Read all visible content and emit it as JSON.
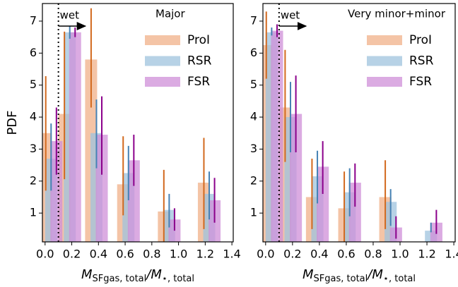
{
  "chart_data": [
    {
      "type": "bar",
      "ylabel": "PDF",
      "title": "Major",
      "xlabel_parts": [
        "M",
        "SFgas, total",
        "/M",
        "⋆, total"
      ],
      "threshold": 0.1,
      "threshold_label": "wet",
      "x": [
        0.045,
        0.185,
        0.385,
        0.625,
        0.93,
        1.23
      ],
      "bar_width": 0.09,
      "xlim": [
        -0.02,
        1.41
      ],
      "ylim": [
        0.1,
        7.55
      ],
      "xticks": [
        {
          "value": 0,
          "label": "0.0"
        },
        {
          "value": 0.2,
          "label": "0.2"
        },
        {
          "value": 0.4,
          "label": "0.4"
        },
        {
          "value": 0.6,
          "label": "0.6"
        },
        {
          "value": 0.8,
          "label": "0.8"
        },
        {
          "value": 1,
          "label": "1.0"
        },
        {
          "value": 1.2,
          "label": "1.2"
        },
        {
          "value": 1.4,
          "label": "1.4"
        }
      ],
      "yticks": [
        1,
        2,
        3,
        4,
        5,
        6,
        7
      ],
      "legend": "upper right",
      "series": [
        {
          "name": "ProI",
          "color": "#f0b088",
          "err_color": "#d2691e",
          "values": [
            3.5,
            4.1,
            5.8,
            1.9,
            1.05,
            1.95
          ],
          "lower": [
            1.7,
            2.06,
            4.3,
            0.93,
            0.1,
            0.5
          ],
          "upper": [
            5.28,
            6.67,
            7.4,
            3.4,
            2.35,
            3.35
          ]
        },
        {
          "name": "RSR",
          "color": "#9fc3de",
          "err_color": "#4682b4",
          "values": [
            2.7,
            6.65,
            3.5,
            2.25,
            1.1,
            1.6
          ],
          "lower": [
            1.7,
            6.45,
            2.4,
            1.4,
            0.55,
            0.8
          ],
          "upper": [
            3.8,
            6.85,
            4.55,
            3.1,
            1.6,
            2.3
          ]
        },
        {
          "name": "FSR",
          "color": "#cf8fd8",
          "err_color": "#8b008b",
          "values": [
            3.25,
            6.65,
            3.45,
            2.65,
            0.8,
            1.4
          ],
          "lower": [
            2.2,
            6.5,
            2.2,
            1.85,
            0.45,
            0.7
          ],
          "upper": [
            4.3,
            6.8,
            4.65,
            3.45,
            1.15,
            2.1
          ]
        }
      ]
    },
    {
      "type": "bar",
      "title": "Very minor+minor",
      "xlabel_parts": [
        "M",
        "SFgas, total",
        "/M",
        "⋆, total"
      ],
      "threshold": 0.1,
      "threshold_label": "wet",
      "x": [
        0.045,
        0.185,
        0.385,
        0.625,
        0.93,
        1.23
      ],
      "bar_width": 0.09,
      "xlim": [
        -0.02,
        1.41
      ],
      "ylim": [
        0.1,
        7.55
      ],
      "xticks": [
        {
          "value": 0,
          "label": "0.0"
        },
        {
          "value": 0.2,
          "label": "0.2"
        },
        {
          "value": 0.4,
          "label": "0.4"
        },
        {
          "value": 0.6,
          "label": "0.6"
        },
        {
          "value": 0.8,
          "label": "0.8"
        },
        {
          "value": 1,
          "label": "1.0"
        },
        {
          "value": 1.2,
          "label": "1.2"
        },
        {
          "value": 1.4,
          "label": "1.4"
        }
      ],
      "yticks": [
        1,
        2,
        3,
        4,
        5,
        6,
        7
      ],
      "legend": "upper right",
      "series": [
        {
          "name": "ProI",
          "color": "#f0b088",
          "err_color": "#d2691e",
          "values": [
            6.25,
            4.3,
            1.5,
            1.15,
            1.5,
            null
          ],
          "lower": [
            5.2,
            2.6,
            0.5,
            0.1,
            0.5,
            null
          ],
          "upper": [
            7.3,
            6.1,
            2.7,
            2.3,
            2.65,
            null
          ]
        },
        {
          "name": "RSR",
          "color": "#9fc3de",
          "err_color": "#4682b4",
          "values": [
            6.65,
            4.0,
            2.15,
            1.65,
            1.35,
            0.45
          ],
          "lower": [
            6.55,
            2.9,
            1.3,
            0.9,
            0.6,
            0.4
          ],
          "upper": [
            6.8,
            5.1,
            2.95,
            2.4,
            1.75,
            0.7
          ]
        },
        {
          "name": "FSR",
          "color": "#cf8fd8",
          "err_color": "#8b008b",
          "values": [
            6.7,
            4.1,
            2.45,
            1.95,
            0.55,
            0.7
          ],
          "lower": [
            6.5,
            2.9,
            1.6,
            1.2,
            0.2,
            0.35
          ],
          "upper": [
            6.9,
            5.3,
            3.25,
            2.55,
            0.9,
            1.1
          ]
        }
      ]
    }
  ]
}
